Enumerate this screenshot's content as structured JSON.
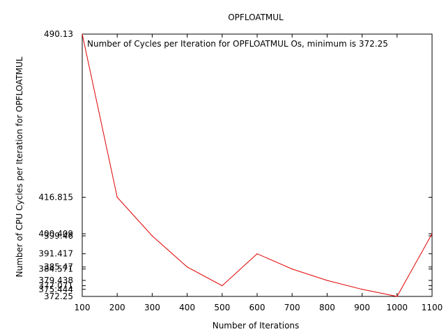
{
  "chart_data": {
    "type": "line",
    "title": "OPFLOATMUL",
    "xlabel": "Number of Iterations",
    "ylabel": "Number of CPU Cycles per Iteration for OPFLOATMUL",
    "legend_position": "top-left inside plot",
    "grid": false,
    "xlim": [
      100,
      1100
    ],
    "ylim": [
      372.25,
      490.13
    ],
    "x_ticks": [
      100,
      200,
      300,
      400,
      500,
      600,
      700,
      800,
      900,
      1000,
      1100
    ],
    "y_ticks": [
      "490.13",
      "416.815",
      "400.409",
      "399.46",
      "391.417",
      "385.47",
      "384.571",
      "379.438",
      "377.071",
      "375.444",
      "372.25"
    ],
    "series": [
      {
        "name": "Number of Cycles per Iteration for OPFLOATMUL Os, minimum is 372.25",
        "color": "#e00000",
        "x": [
          100,
          200,
          300,
          400,
          500,
          600,
          700,
          800,
          900,
          1000,
          1100
        ],
        "y": [
          490.13,
          416.815,
          399.46,
          385.47,
          377.071,
          391.417,
          384.571,
          379.438,
          375.444,
          372.25,
          400.409
        ]
      }
    ]
  }
}
